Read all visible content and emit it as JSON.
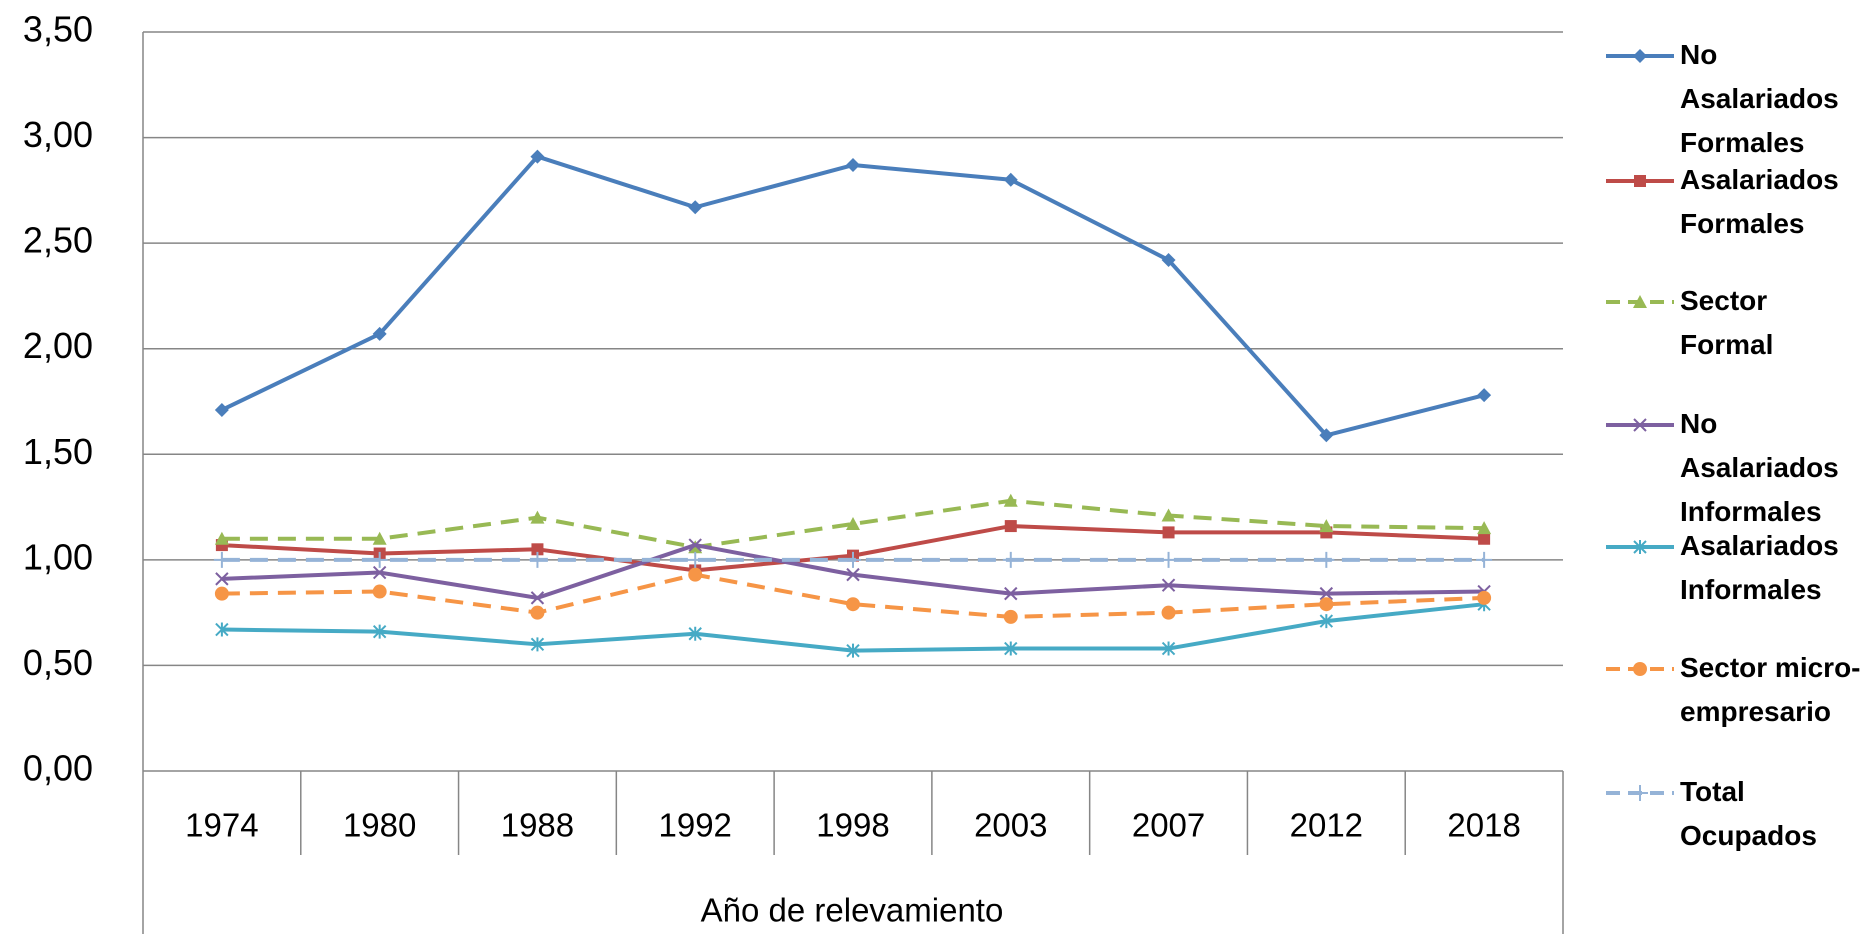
{
  "chart_data": {
    "type": "line",
    "x_label": "Año de relevamiento",
    "categories": [
      "1974",
      "1980",
      "1988",
      "1992",
      "1998",
      "2003",
      "2007",
      "2012",
      "2018"
    ],
    "ylim": [
      0,
      3.5
    ],
    "yticks": [
      {
        "value": 0,
        "label": "0,00"
      },
      {
        "value": 0.5,
        "label": "0,50"
      },
      {
        "value": 1,
        "label": "1,00"
      },
      {
        "value": 1.5,
        "label": "1,50"
      },
      {
        "value": 2,
        "label": "2,00"
      },
      {
        "value": 2.5,
        "label": "2,50"
      },
      {
        "value": 3,
        "label": "3,00"
      },
      {
        "value": 3.5,
        "label": "3,50"
      }
    ],
    "grid": true,
    "legend": "right",
    "series": [
      {
        "name": "No Asalariados Formales",
        "color": "#4a7ebb",
        "dash": false,
        "marker": "diamond",
        "values": [
          1.71,
          2.07,
          2.91,
          2.67,
          2.87,
          2.8,
          2.42,
          1.59,
          1.78
        ]
      },
      {
        "name": "Asalariados Formales",
        "color": "#be4b48",
        "dash": false,
        "marker": "square",
        "values": [
          1.07,
          1.03,
          1.05,
          0.95,
          1.02,
          1.16,
          1.13,
          1.13,
          1.1
        ]
      },
      {
        "name": "Sector Formal",
        "color": "#98b954",
        "dash": true,
        "marker": "triangle",
        "values": [
          1.1,
          1.1,
          1.2,
          1.06,
          1.17,
          1.28,
          1.21,
          1.16,
          1.15
        ]
      },
      {
        "name": "No Asalariados Informales",
        "color": "#7d60a0",
        "dash": false,
        "marker": "x",
        "values": [
          0.91,
          0.94,
          0.82,
          1.07,
          0.93,
          0.84,
          0.88,
          0.84,
          0.85
        ]
      },
      {
        "name": "Asalariados Informales",
        "color": "#46aac5",
        "dash": false,
        "marker": "star",
        "values": [
          0.67,
          0.66,
          0.6,
          0.65,
          0.57,
          0.58,
          0.58,
          0.71,
          0.79
        ]
      },
      {
        "name": "Sector micro-empresario",
        "color": "#f69546",
        "dash": true,
        "marker": "circle",
        "values": [
          0.84,
          0.85,
          0.75,
          0.93,
          0.79,
          0.73,
          0.75,
          0.79,
          0.82
        ]
      },
      {
        "name": "Total Ocupados",
        "color": "#95b3d7",
        "dash": true,
        "marker": "plus",
        "values": [
          1.0,
          1.0,
          1.0,
          1.0,
          1.0,
          1.0,
          1.0,
          1.0,
          1.0
        ]
      }
    ]
  }
}
